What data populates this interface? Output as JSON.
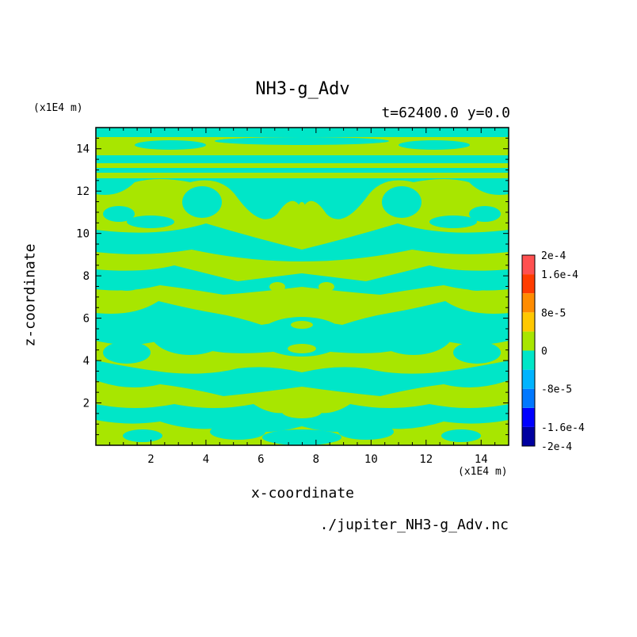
{
  "title": "NH3-g_Adv",
  "subtitle": "t=62400.0 y=0.0",
  "x_axis": {
    "label": "x-coordinate",
    "unit": "(x1E4 m)",
    "range": [
      0,
      15
    ],
    "ticks": [
      "2",
      "4",
      "6",
      "8",
      "10",
      "12",
      "14"
    ]
  },
  "z_axis": {
    "label": "z-coordinate",
    "unit": "(x1E4 m)",
    "range": [
      0,
      15
    ],
    "ticks": [
      "2",
      "4",
      "6",
      "8",
      "10",
      "12",
      "14"
    ]
  },
  "file": "./jupiter_NH3-g_Adv.nc",
  "colors": {
    "positive_small": "#a8e600",
    "negative_small": "#00e6c8"
  },
  "chart_data": {
    "type": "heatmap",
    "title": "NH3-g_Adv",
    "subtitle": "t=62400.0 y=0.0",
    "xlabel": "x-coordinate",
    "ylabel": "z-coordinate",
    "xlim": [
      0,
      15
    ],
    "ylim": [
      0,
      15
    ],
    "grid": false,
    "colorbar": {
      "levels": [
        -0.0002,
        -0.00016,
        -0.00012,
        -8e-05,
        -4e-05,
        0,
        4e-05,
        8e-05,
        0.00012,
        0.00016,
        0.0002
      ],
      "colors": [
        "#0000a0",
        "#0000ff",
        "#0078ff",
        "#00b4ff",
        "#00e6c8",
        "#a8e600",
        "#ffc800",
        "#ff8c00",
        "#ff3c00",
        "#ff5050"
      ],
      "tick_labels": [
        {
          "value": -0.0002,
          "label": "-2e-4"
        },
        {
          "value": -0.00016,
          "label": "-1.6e-4"
        },
        {
          "value": -8e-05,
          "label": "-8e-5"
        },
        {
          "value": 0,
          "label": "0"
        },
        {
          "value": 8e-05,
          "label": "8e-5"
        },
        {
          "value": 0.00016,
          "label": "1.6e-4"
        },
        {
          "value": 0.0002,
          "label": "2e-4"
        }
      ]
    },
    "field_note": "Field values lie within the two bands adjacent to zero; pattern mirror-symmetric about x = 7.5."
  }
}
